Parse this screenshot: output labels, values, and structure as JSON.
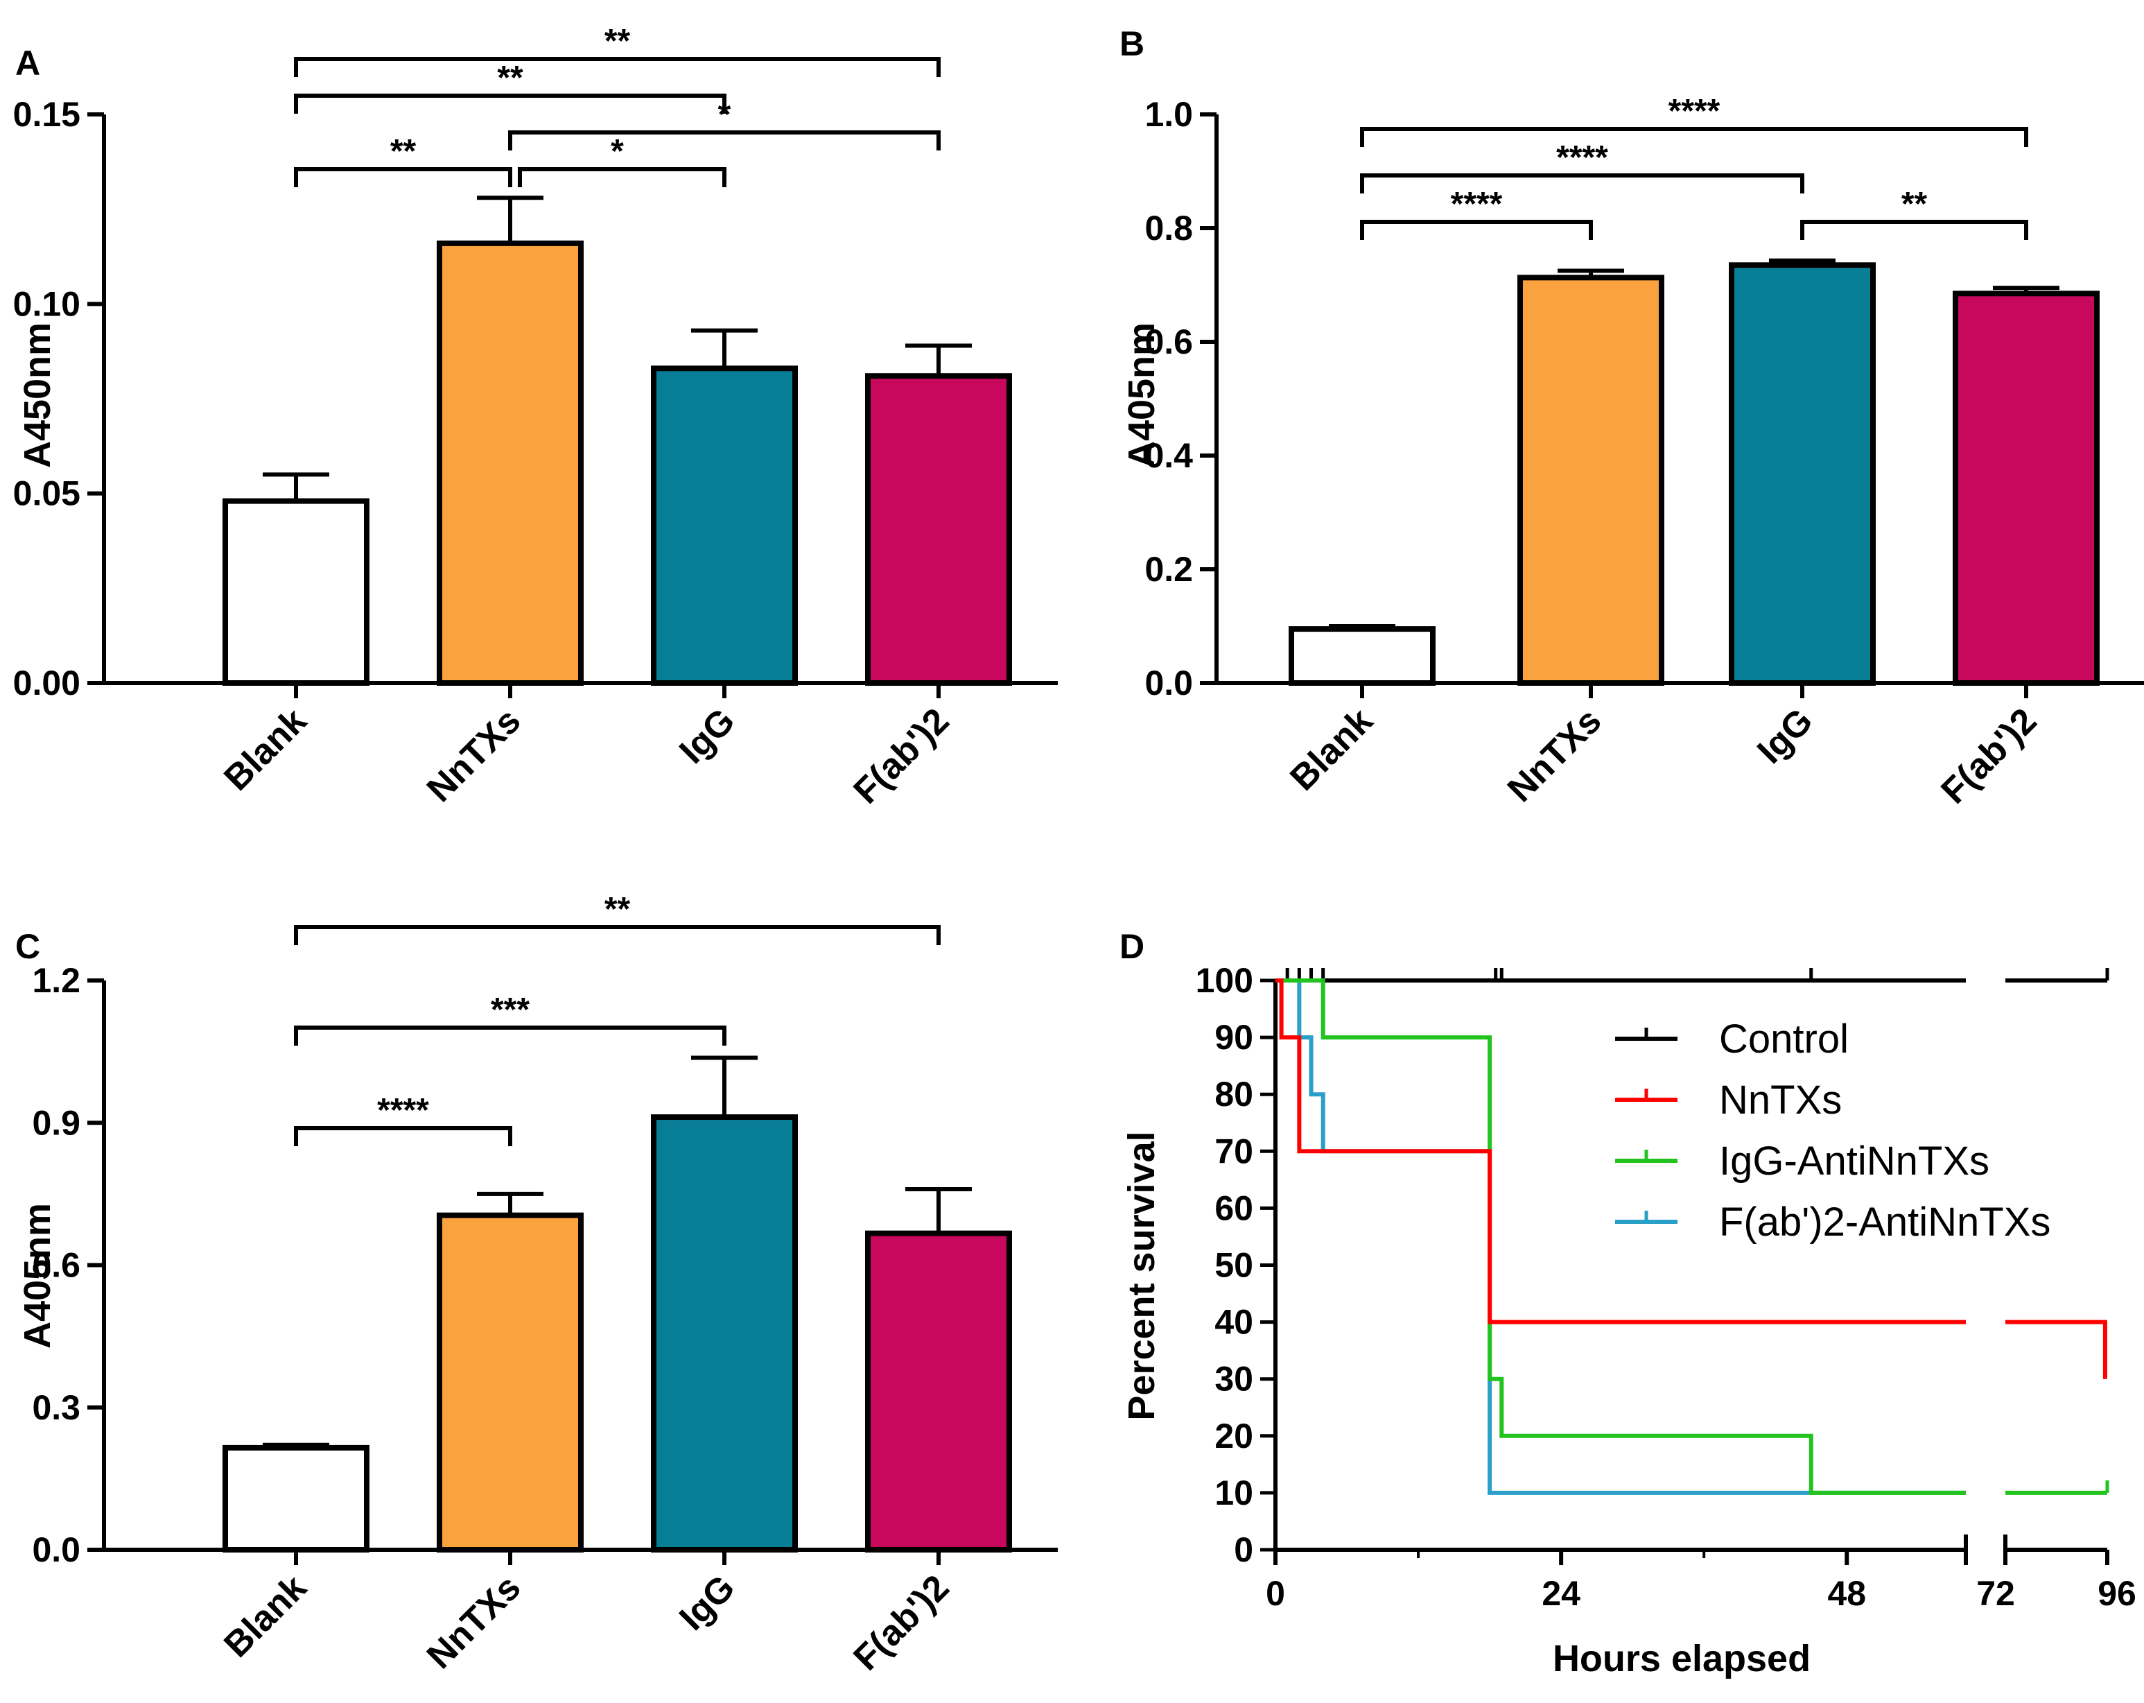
{
  "figure": {
    "colors": {
      "Blank": "#ffffff",
      "NnTXs": "#f9a23e",
      "IgG": "#087d96",
      "F(ab')2": "#c8085c",
      "Control": "#000000",
      "NnTXs_line": "#ff0000",
      "IgG_line": "#22c31e",
      "Fab_line": "#2a9fc8"
    }
  },
  "chart_data": [
    {
      "panel": "A",
      "type": "bar",
      "ylabel": "A450nm",
      "ylim": [
        0,
        0.15
      ],
      "yticks": [
        "0.00",
        "0.05",
        "0.10",
        "0.15"
      ],
      "ytick_values": [
        0,
        0.05,
        0.1,
        0.15
      ],
      "categories": [
        "Blank",
        "NnTXs",
        "IgG",
        "F(ab')2"
      ],
      "values": [
        0.048,
        0.116,
        0.083,
        0.081
      ],
      "errors": [
        0.007,
        0.012,
        0.01,
        0.008
      ],
      "significance": [
        {
          "from": 0,
          "to": 1,
          "label": "**",
          "level": 0
        },
        {
          "from": 1,
          "to": 2,
          "label": "*",
          "level": 0
        },
        {
          "from": 1,
          "to": 3,
          "label": "*",
          "level": 1
        },
        {
          "from": 0,
          "to": 2,
          "label": "**",
          "level": 2
        },
        {
          "from": 0,
          "to": 3,
          "label": "**",
          "level": 3
        }
      ]
    },
    {
      "panel": "B",
      "type": "bar",
      "ylabel": "A405nm",
      "ylim": [
        0,
        1.0
      ],
      "yticks": [
        "0.0",
        "0.2",
        "0.4",
        "0.6",
        "0.8",
        "1.0"
      ],
      "ytick_values": [
        0,
        0.2,
        0.4,
        0.6,
        0.8,
        1.0
      ],
      "categories": [
        "Blank",
        "NnTXs",
        "IgG",
        "F(ab')2"
      ],
      "values": [
        0.095,
        0.713,
        0.735,
        0.685
      ],
      "errors": [
        0.005,
        0.012,
        0.008,
        0.01
      ],
      "significance": [
        {
          "from": 0,
          "to": 1,
          "label": "****",
          "level": 0
        },
        {
          "from": 2,
          "to": 3,
          "label": "**",
          "level": 0
        },
        {
          "from": 0,
          "to": 2,
          "label": "****",
          "level": 1
        },
        {
          "from": 0,
          "to": 3,
          "label": "****",
          "level": 2
        }
      ]
    },
    {
      "panel": "C",
      "type": "bar",
      "ylabel": "A405nm",
      "ylim": [
        0,
        1.2
      ],
      "yticks": [
        "0.0",
        "0.3",
        "0.6",
        "0.9",
        "1.2"
      ],
      "ytick_values": [
        0,
        0.3,
        0.6,
        0.9,
        1.2
      ],
      "categories": [
        "Blank",
        "NnTXs",
        "IgG",
        "F(ab')2"
      ],
      "values": [
        0.215,
        0.705,
        0.912,
        0.667
      ],
      "errors": [
        0.006,
        0.045,
        0.125,
        0.093
      ],
      "significance": [
        {
          "from": 0,
          "to": 1,
          "label": "****",
          "level": 0
        },
        {
          "from": 0,
          "to": 2,
          "label": "***",
          "level": 1
        },
        {
          "from": 0,
          "to": 3,
          "label": "**",
          "level": 2
        }
      ]
    },
    {
      "panel": "D",
      "type": "line",
      "subtype": "survival-step",
      "ylabel": "Percent survival",
      "xlabel": "Hours elapsed",
      "ylim": [
        0,
        100
      ],
      "yticks": [
        "0",
        "10",
        "20",
        "30",
        "40",
        "50",
        "60",
        "70",
        "80",
        "90",
        "100"
      ],
      "ytick_values": [
        0,
        10,
        20,
        30,
        40,
        50,
        60,
        70,
        80,
        90,
        100
      ],
      "xticks": [
        "0",
        "24",
        "48",
        "72",
        "96"
      ],
      "xtick_values": [
        0,
        24,
        48,
        72,
        96
      ],
      "x_break": [
        58,
        72
      ],
      "series": [
        {
          "name": "Control",
          "points": [
            [
              0,
              100
            ],
            [
              96,
              100
            ]
          ],
          "censor_marks": [
            1,
            2,
            3,
            4,
            18.5,
            19,
            45,
            96
          ]
        },
        {
          "name": "NnTXs",
          "points": [
            [
              0,
              100
            ],
            [
              0.5,
              100
            ],
            [
              0.5,
              90
            ],
            [
              2,
              90
            ],
            [
              2,
              70
            ],
            [
              18,
              70
            ],
            [
              18,
              40
            ],
            [
              95.5,
              40
            ],
            [
              95.5,
              30
            ]
          ],
          "censor_marks": []
        },
        {
          "name": "IgG-AntiNnTXs",
          "points": [
            [
              0,
              100
            ],
            [
              4,
              100
            ],
            [
              4,
              90
            ],
            [
              18,
              90
            ],
            [
              18,
              30
            ],
            [
              19,
              30
            ],
            [
              19,
              20
            ],
            [
              45,
              20
            ],
            [
              45,
              10
            ],
            [
              96,
              10
            ]
          ],
          "censor_marks": [
            96
          ]
        },
        {
          "name": "F(ab')2-AntiNnTXs",
          "points": [
            [
              0,
              100
            ],
            [
              2,
              100
            ],
            [
              2,
              90
            ],
            [
              3,
              90
            ],
            [
              3,
              80
            ],
            [
              4,
              80
            ],
            [
              4,
              70
            ],
            [
              18,
              70
            ],
            [
              18,
              10
            ],
            [
              58,
              10
            ]
          ],
          "censor_marks": []
        }
      ],
      "legend": [
        "Control",
        "NnTXs",
        "IgG-AntiNnTXs",
        "F(ab')2-AntiNnTXs"
      ]
    }
  ]
}
